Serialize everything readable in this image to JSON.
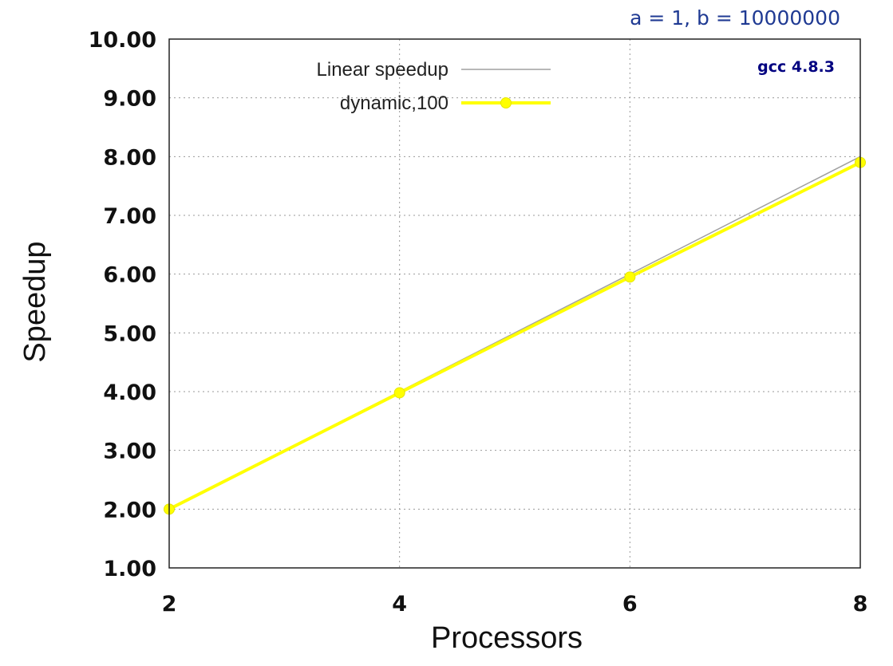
{
  "chart_data": {
    "type": "line",
    "title": "",
    "xlabel": "Processors",
    "ylabel": "Speedup",
    "xlim": [
      2,
      8
    ],
    "ylim": [
      1,
      10
    ],
    "x_ticks": [
      "2",
      "4",
      "6",
      "8"
    ],
    "y_ticks": [
      "1.00",
      "2.00",
      "3.00",
      "4.00",
      "5.00",
      "6.00",
      "7.00",
      "8.00",
      "9.00",
      "10.00"
    ],
    "grid": true,
    "legend_position": "top-left",
    "series": [
      {
        "name": "Linear speedup",
        "color": "#a0a0a0",
        "marker": "none",
        "x": [
          2,
          4,
          6,
          8
        ],
        "y": [
          2,
          4,
          6,
          8
        ]
      },
      {
        "name": "dynamic,100",
        "color": "#ffff00",
        "marker": "circle",
        "x": [
          2,
          4,
          6,
          8
        ],
        "y": [
          2.0,
          3.98,
          5.95,
          7.9
        ]
      }
    ],
    "annotations": {
      "range": "a = 1, b = 10000000",
      "compiler": "gcc 4.8.3"
    }
  }
}
